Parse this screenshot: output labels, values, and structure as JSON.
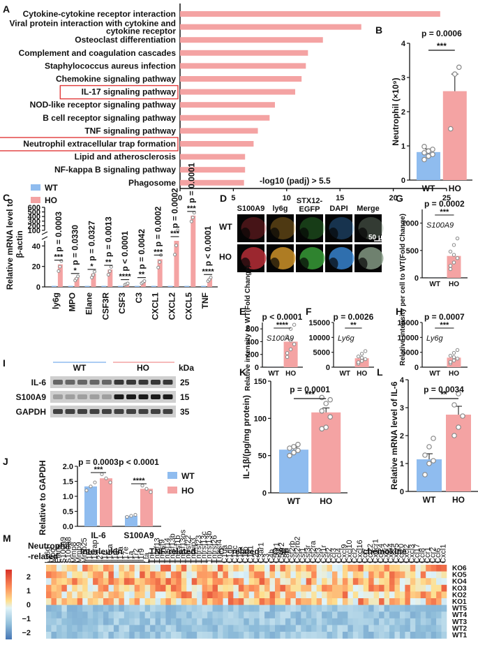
{
  "panels": [
    "A",
    "B",
    "C",
    "D",
    "E",
    "F",
    "G",
    "H",
    "I",
    "J",
    "K",
    "L",
    "M"
  ],
  "chart_data": [
    {
      "id": "A",
      "type": "bar",
      "orientation": "horizontal",
      "categories": [
        "Cytokine-cytokine receptor interaction",
        "Viral protein interaction with cytokine and cytokine receptor",
        "Osteoclast differentiation",
        "Complement and coagulation cascades",
        "Staphylococcus aureus infection",
        "Chemokine signaling pathway",
        "IL-17 signaling pathway",
        "NOD-like receptor signaling pathway",
        "B cell receptor signaling pathway",
        "TNF signaling pathway",
        "Neutrophil extracellular trap formation",
        "Lipid and atherosclerosis",
        "NF-kappa B signaling pathway",
        "Phagosome"
      ],
      "category_lines": [
        [
          "Cytokine-cytokine receptor interaction"
        ],
        [
          "Viral protein interaction with cytokine and",
          "cytokine receptor"
        ],
        [
          "Osteoclast differentiation"
        ],
        [
          "Complement and coagulation cascades"
        ],
        [
          "Staphylococcus aureus infection"
        ],
        [
          "Chemokine signaling pathway"
        ],
        [
          "IL-17 signaling pathway"
        ],
        [
          "NOD-like receptor signaling pathway"
        ],
        [
          "B cell receptor signaling pathway"
        ],
        [
          "TNF signaling pathway"
        ],
        [
          "Neutrophil extracellular trap formation"
        ],
        [
          "Lipid and atherosclerosis"
        ],
        [
          "NF-kappa B signaling pathway"
        ],
        [
          "Phagosome"
        ]
      ],
      "highlighted": [
        "IL-17 signaling pathway",
        "Neutrophil extracellular trap formation"
      ],
      "values": [
        24.4,
        17.0,
        13.4,
        12.0,
        11.8,
        11.4,
        10.8,
        8.9,
        8.4,
        7.3,
        6.9,
        6.1,
        6.1,
        6.0
      ],
      "xticks": [
        "0",
        "5",
        "10",
        "15",
        "20",
        "25"
      ],
      "xlim": [
        0,
        25
      ],
      "annotation": "-log10 (padj) > 5.5",
      "color": "#f4a3a3"
    },
    {
      "id": "B",
      "type": "bar",
      "categories": [
        "WT",
        "HO"
      ],
      "means": [
        0.82,
        2.6
      ],
      "sem": [
        0.09,
        0.5
      ],
      "points": [
        [
          0.6,
          0.7,
          0.75,
          0.8,
          0.85,
          0.9,
          0.98
        ],
        [
          1.5,
          3.1,
          3.3
        ]
      ],
      "ylabel": "Neutrophil (×10⁹)",
      "yticks": [
        "0",
        "1",
        "2",
        "3",
        "4"
      ],
      "ylim": [
        0,
        4
      ],
      "p": "p = 0.0006",
      "sig": "***",
      "colors": [
        "#8fbcef",
        "#f4a3a3"
      ]
    },
    {
      "id": "C",
      "type": "bar",
      "legend": [
        "WT",
        "HO"
      ],
      "categories": [
        "ly6g",
        "MPO",
        "Elane",
        "CSF3R",
        "CSF3",
        "C3",
        "CXCL1",
        "CXCL2",
        "CXCL5",
        "TNF"
      ],
      "wt": [
        1,
        1,
        1,
        1,
        1,
        1,
        1,
        1,
        1,
        1
      ],
      "ho": [
        22,
        9,
        13,
        17,
        3,
        5,
        27,
        45,
        420,
        8
      ],
      "p": [
        "p = 0.0003",
        "p = 0.0330",
        "p = 0.0327",
        "p = 0.0013",
        "p < 0.0001",
        "p = 0.0042",
        "p = 0.0002",
        "p = 0.0002",
        "p = 0.0001",
        "p < 0.0001"
      ],
      "sig": [
        "***",
        "*",
        "*",
        "**",
        "****",
        "**",
        "***",
        "***",
        "***",
        "****"
      ],
      "ylabel": "Relative mRNA level to β-actin",
      "yticks_lower": [
        "0",
        "20",
        "40"
      ],
      "yticks_upper": [
        "100",
        "200",
        "300",
        "400",
        "500",
        "600"
      ]
    },
    {
      "id": "E",
      "type": "bar",
      "title": "p < 0.0001",
      "sig": "****",
      "label": "S100A9",
      "categories": [
        "WT",
        "HO"
      ],
      "means": [
        1,
        400
      ],
      "yticks": [
        "0",
        "200",
        "400",
        "600"
      ],
      "ylim": [
        0,
        700
      ],
      "ylabel": "Relative intensity to WT(Fold Change)"
    },
    {
      "id": "F",
      "type": "bar",
      "title": "p = 0.0026",
      "sig": "**",
      "label": "Ly6g",
      "categories": [
        "WT",
        "HO"
      ],
      "means": [
        1,
        3000
      ],
      "yticks": [
        "0",
        "5000",
        "10000",
        "15000"
      ],
      "ylim": [
        0,
        15000
      ]
    },
    {
      "id": "G",
      "type": "bar",
      "title": "p = 0.0002",
      "sig": "***",
      "label": "S100A9",
      "categories": [
        "WT",
        "HO"
      ],
      "means": [
        1,
        400
      ],
      "yticks": [
        "0",
        "500",
        "1000"
      ],
      "ylim": [
        0,
        1250
      ],
      "ylabel": "Relative intensity per cell to WT(Fold Change)"
    },
    {
      "id": "H",
      "type": "bar",
      "title": "p = 0.0007",
      "sig": "***",
      "label": "Ly6g",
      "categories": [
        "WT",
        "HO"
      ],
      "means": [
        1,
        3200
      ],
      "yticks": [
        "0",
        "5000",
        "10000",
        "15000"
      ],
      "ylim": [
        0,
        15000
      ]
    },
    {
      "id": "J",
      "type": "bar",
      "legend": [
        "WT",
        "HO"
      ],
      "categories": [
        "IL-6",
        "S100A9"
      ],
      "wt": [
        1.33,
        0.35
      ],
      "ho": [
        1.6,
        1.25
      ],
      "p": [
        "p = 0.0003",
        "p < 0.0001"
      ],
      "sig": [
        "***",
        "****"
      ],
      "ylabel": "Relative to GAPDH",
      "yticks": [
        "0.0",
        "0.5",
        "1.0",
        "1.5",
        "2.0"
      ],
      "ylim": [
        0,
        2
      ]
    },
    {
      "id": "K",
      "type": "bar",
      "categories": [
        "WT",
        "HO"
      ],
      "means": [
        58,
        108
      ],
      "sem": [
        3,
        6
      ],
      "points": [
        [
          50,
          54,
          57,
          60,
          62,
          65
        ],
        [
          86,
          88,
          102,
          110,
          120,
          125,
          128
        ]
      ],
      "ylabel": "IL-1β/(pg/mg protein)",
      "yticks": [
        "0",
        "50",
        "100",
        "150"
      ],
      "ylim": [
        0,
        150
      ],
      "p": "p = 0.0001",
      "sig": "***"
    },
    {
      "id": "L",
      "type": "bar",
      "categories": [
        "WT",
        "HO"
      ],
      "means": [
        1.15,
        2.75
      ],
      "sem": [
        0.2,
        0.3
      ],
      "points": [
        [
          0.6,
          1.0,
          1.1,
          1.3,
          1.6,
          1.9
        ],
        [
          2.0,
          2.3,
          2.7,
          3.1,
          3.5
        ]
      ],
      "ylabel": "Relative mRNA level of IL-6",
      "yticks": [
        "0",
        "1",
        "2",
        "3",
        "4"
      ],
      "ylim": [
        0,
        4
      ],
      "p": "p = 0.0034",
      "sig": "**"
    },
    {
      "id": "M",
      "type": "heatmap",
      "groups": [
        "Neutrophil -related",
        "Interleukin",
        "TNF-related",
        "C - related",
        "CSF",
        "chemokine"
      ],
      "group_lines": [
        [
          "Neutrophil",
          "-related"
        ],
        [
          "Interleukin"
        ],
        [
          "TNF-related"
        ],
        [
          "C - related"
        ],
        [
          "CSF"
        ],
        [
          "chemokine"
        ]
      ],
      "rows": [
        "KO6",
        "KO5",
        "KO4",
        "KO3",
        "KO2",
        "KO1",
        "WT5",
        "WT4",
        "WT3",
        "WT2",
        "WT1"
      ],
      "colorbar": [
        "2",
        "1",
        "0",
        "−1",
        "−2"
      ],
      "genes": [
        "Ly6g",
        "Mpo",
        "Elane",
        "S100a9",
        "S100a8",
        "Mmp8",
        "Mmp9",
        "Mmp25",
        "Il1b",
        "Il18rap",
        "Il27",
        "Il1r",
        "Il10ra",
        "Il1rn",
        "Il17a",
        "Il17e",
        "Il1a",
        "Il1r2",
        "Il1r9",
        "Lta",
        "Tnf",
        "Tnfsf13",
        "Tnfrsf9",
        "Tnfsf14",
        "Tnfsf13b",
        "Tnfrsf1b",
        "Tnfsf13os",
        "Tnfrsf22",
        "Tnfaip3",
        "Tnfrsf23",
        "Tnfrsf13c",
        "Tnfrsf13b",
        "Tnfrsf26",
        "Tnfrsf4",
        "C1qa",
        "C1qb",
        "C1qc",
        "C1ra",
        "C1rb",
        "C1s1",
        "C2",
        "C3ar1",
        "C3",
        "C4b",
        "C5ar1",
        "C5ar2",
        "C8b",
        "Csf2rb",
        "Csf2rb2",
        "Csf1",
        "Csf3r",
        "Csf2ra",
        "Csf3",
        "Csf1r",
        "Csf2",
        "Ccl3",
        "Ccl4",
        "Cxcl9",
        "Cxcl10",
        "Ccl2",
        "Cxcl16",
        "Ccl7",
        "Ccl22",
        "Cx3cr1",
        "Ccl24",
        "Cxcr2",
        "Cxcr4",
        "Cxcr5",
        "Ccl20",
        "Cxcl2",
        "Cxcl3",
        "Ccl17",
        "Ccl8",
        "Ccr1",
        "Ccr2",
        "Ccl6",
        "Cxcl1"
      ]
    }
  ],
  "panel_d": {
    "channels": [
      "S100A9",
      "ly6g",
      "STX12-EGFP",
      "DAPI",
      "Merge"
    ],
    "channel_lines": [
      [
        "S100A9"
      ],
      [
        "ly6g"
      ],
      [
        "STX12-",
        "EGFP"
      ],
      [
        "DAPI"
      ],
      [
        "Merge"
      ]
    ],
    "rows": [
      "WT",
      "HO"
    ],
    "scale": "50 μm"
  },
  "panel_i": {
    "groups": [
      "WT",
      "HO"
    ],
    "units": "kDa",
    "bands": [
      {
        "name": "IL-6",
        "kda": "25"
      },
      {
        "name": "S100A9",
        "kda": "15"
      },
      {
        "name": "GAPDH",
        "kda": "35"
      }
    ]
  },
  "colors": {
    "wt": "#8fbcef",
    "ho": "#f4a3a3",
    "highlight": "#e23a3a"
  }
}
